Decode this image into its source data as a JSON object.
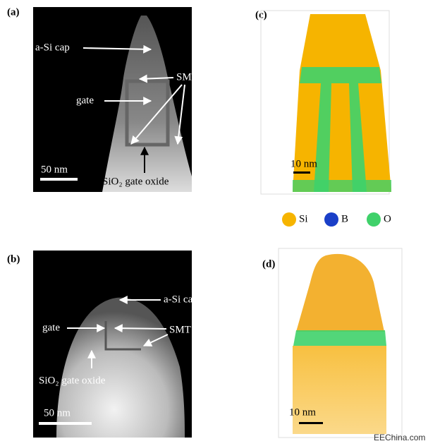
{
  "panels": [
    {
      "label": "(a)",
      "annotations": [
        "a-Si cap",
        "SMT",
        "gate",
        "SiO₂ gate oxide"
      ],
      "scale_bar": "50 nm"
    },
    {
      "label": "(b)",
      "annotations": [
        "a-Si cap",
        "gate",
        "SMT",
        "SiO₂ gate oxide"
      ],
      "scale_bar": "50 nm"
    },
    {
      "label": "(c)",
      "scale_bar": "10 nm"
    },
    {
      "label": "(d)",
      "scale_bar": "10 nm"
    }
  ],
  "legend": [
    {
      "name": "Si",
      "color": "#f6b400"
    },
    {
      "name": "B",
      "color": "#1a3fc8"
    },
    {
      "name": "O",
      "color": "#3fd16a"
    }
  ],
  "watermark": "EEChina.com"
}
